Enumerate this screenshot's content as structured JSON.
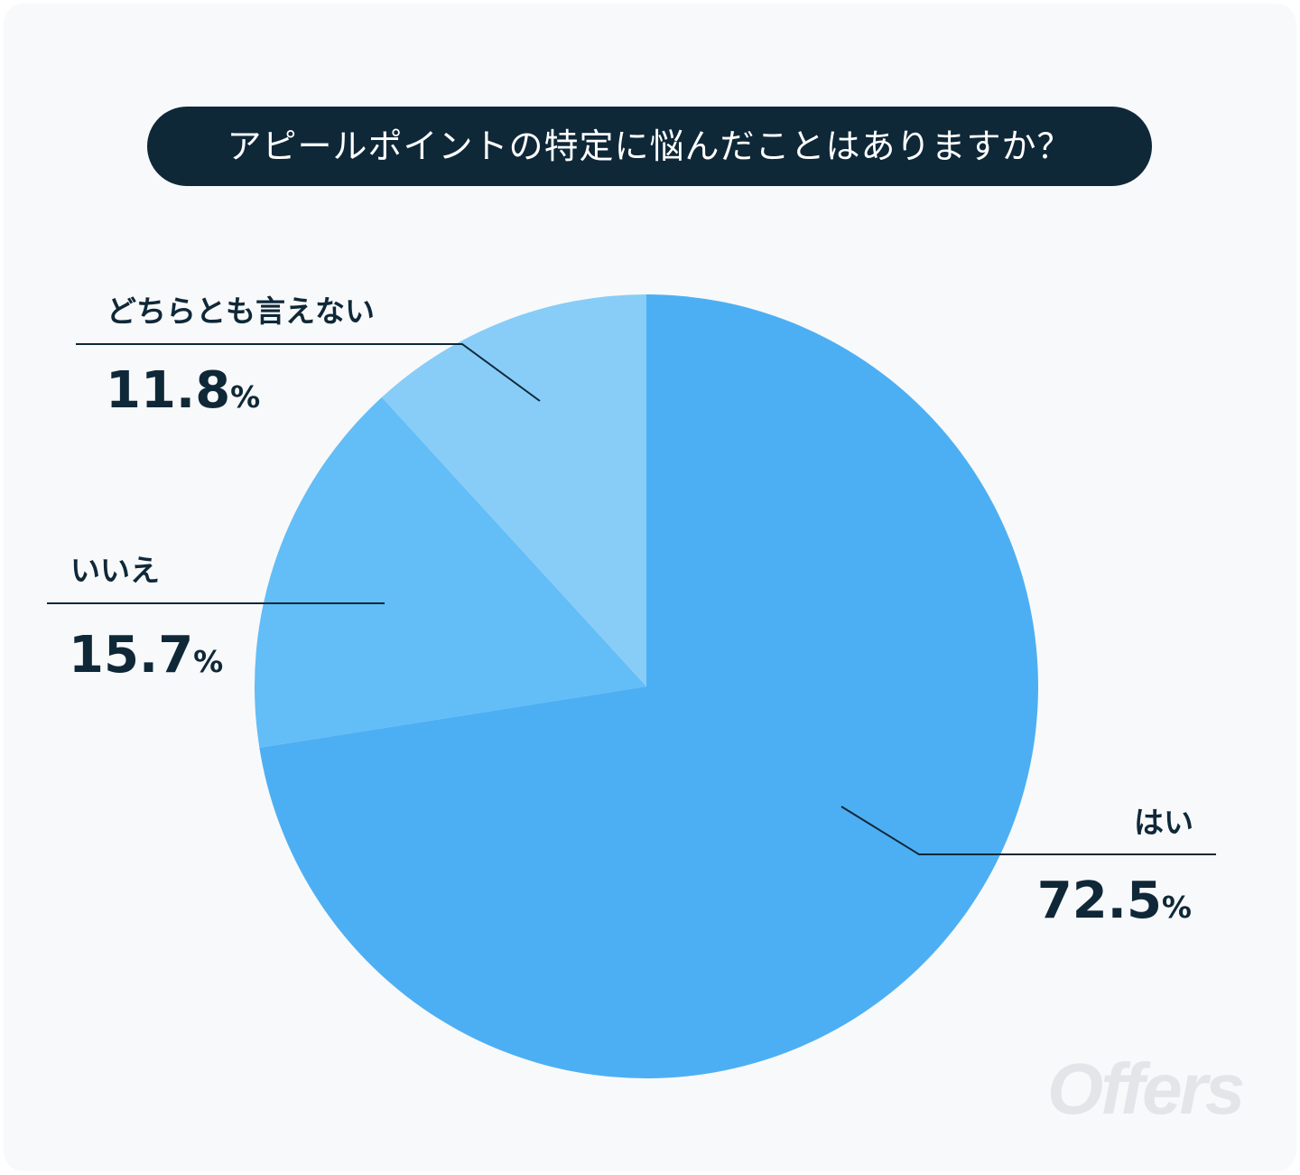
{
  "title": "アピールポイントの特定に悩んだことはありますか？",
  "watermark": "Offers",
  "chart_data": {
    "type": "pie",
    "title": "アピールポイントの特定に悩んだことはありますか？",
    "unit": "%",
    "slices": [
      {
        "label": "はい",
        "value": 72.5,
        "display": "72.5",
        "color": "#4daff3"
      },
      {
        "label": "いいえ",
        "value": 15.7,
        "display": "15.7",
        "color": "#63bdf6"
      },
      {
        "label": "どちらとも言えない",
        "value": 11.8,
        "display": "11.8",
        "color": "#87cdf8"
      }
    ]
  }
}
